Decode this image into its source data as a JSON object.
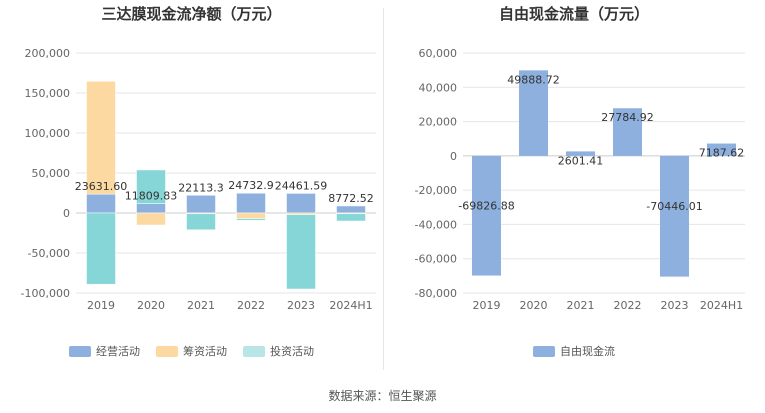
{
  "colors": {
    "operating": "#8eb0de",
    "financing": "#fcd9a1",
    "investing": "#86d6d7",
    "free_cash_flow": "#8eb0de",
    "grid": "#e6e6e6",
    "axis": "#cccccc"
  },
  "source": "数据来源：恒生聚源",
  "chart_data": [
    {
      "type": "bar",
      "stacked": true,
      "title": "三达膜现金流净额（万元）",
      "categories": [
        "2019",
        "2020",
        "2021",
        "2022",
        "2023",
        "2024H1"
      ],
      "series": [
        {
          "name": "经营活动",
          "values": [
            23631.6,
            11809.83,
            22113.3,
            24732.9,
            24461.59,
            8772.52
          ]
        },
        {
          "name": "筹资活动",
          "values": [
            141000,
            -15000,
            -1000,
            -7000,
            -2000,
            -1000
          ]
        },
        {
          "name": "投资活动",
          "values": [
            -89000,
            42000,
            -20000,
            -2000,
            -93000,
            -9000
          ]
        }
      ],
      "data_labels": [
        "23631.60",
        "11809.83",
        "22113.3",
        "24732.9",
        "24461.59",
        "8772.52"
      ],
      "yticks": [
        "200,000",
        "150,000",
        "100,000",
        "50,000",
        "0",
        "-50,000",
        "-100,000"
      ],
      "ylim": [
        -100000,
        200000
      ],
      "grid": true,
      "legend_position": "bottom"
    },
    {
      "type": "bar",
      "title": "自由现金流量（万元）",
      "categories": [
        "2019",
        "2020",
        "2021",
        "2022",
        "2023",
        "2024H1"
      ],
      "series": [
        {
          "name": "自由现金流",
          "values": [
            -69826.88,
            49888.72,
            2601.41,
            27784.92,
            -70446.01,
            7187.62
          ]
        }
      ],
      "data_labels": [
        "-69826.88",
        "49888.72",
        "2601.41",
        "27784.92",
        "-70446.01",
        "7187.62"
      ],
      "yticks": [
        "60,000",
        "40,000",
        "20,000",
        "0",
        "-20,000",
        "-40,000",
        "-60,000",
        "-80,000"
      ],
      "ylim": [
        -80000,
        60000
      ],
      "grid": true,
      "legend_position": "bottom"
    }
  ]
}
